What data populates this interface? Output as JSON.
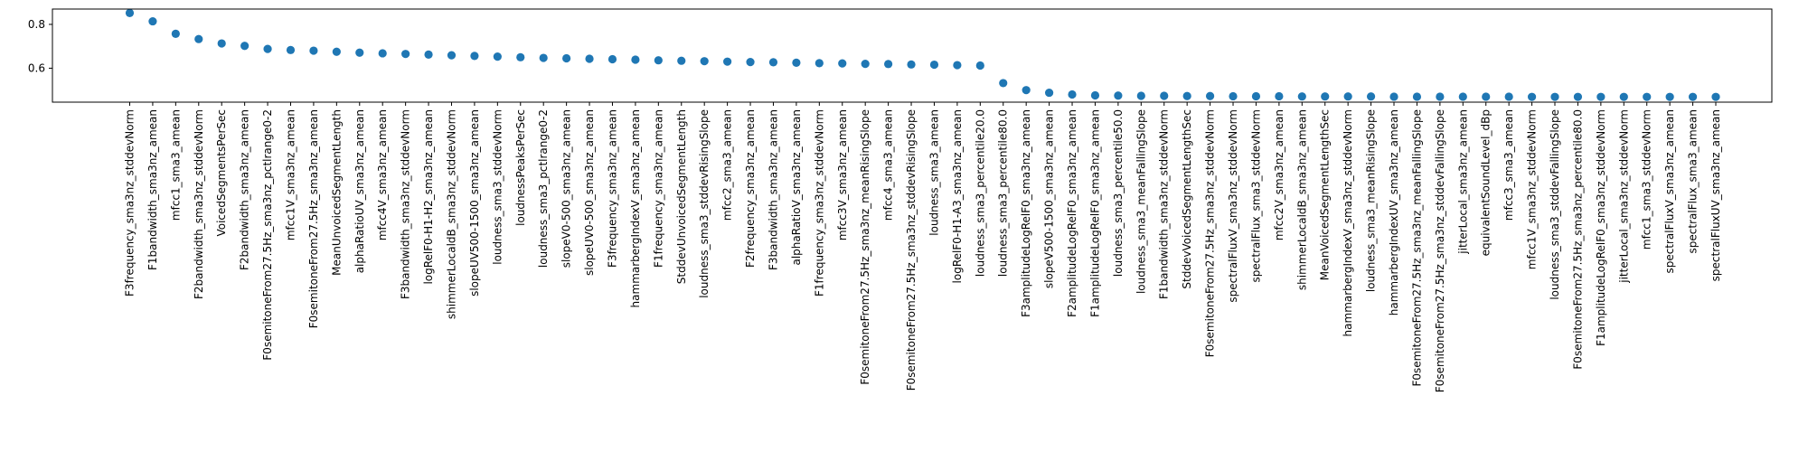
{
  "chart_data": {
    "type": "scatter",
    "title": "",
    "xlabel": "",
    "ylabel": "",
    "ylim": [
      0.445,
      0.87
    ],
    "yticks": [
      0.6,
      0.8
    ],
    "ytick_labels": [
      "0.6",
      "0.8"
    ],
    "grid": false,
    "legend": "none",
    "marker_color": "#1f77b4",
    "categories": [
      "F3frequency_sma3nz_stddevNorm",
      "F1bandwidth_sma3nz_amean",
      "mfcc1_sma3_amean",
      "F2bandwidth_sma3nz_stddevNorm",
      "VoicedSegmentsPerSec",
      "F2bandwidth_sma3nz_amean",
      "F0semitoneFrom27.5Hz_sma3nz_pctlrange0-2",
      "mfcc1V_sma3nz_amean",
      "F0semitoneFrom27.5Hz_sma3nz_amean",
      "MeanUnvoicedSegmentLength",
      "alphaRatioUV_sma3nz_amean",
      "mfcc4V_sma3nz_amean",
      "F3bandwidth_sma3nz_stddevNorm",
      "logRelF0-H1-H2_sma3nz_amean",
      "shimmerLocaldB_sma3nz_stddevNorm",
      "slopeUV500-1500_sma3nz_amean",
      "loudness_sma3_stddevNorm",
      "loudnessPeaksPerSec",
      "loudness_sma3_pctlrange0-2",
      "slopeV0-500_sma3nz_amean",
      "slopeUV0-500_sma3nz_amean",
      "F3frequency_sma3nz_amean",
      "hammarbergIndexV_sma3nz_amean",
      "F1frequency_sma3nz_amean",
      "StddevUnvoicedSegmentLength",
      "loudness_sma3_stddevRisingSlope",
      "mfcc2_sma3_amean",
      "F2frequency_sma3nz_amean",
      "F3bandwidth_sma3nz_amean",
      "alphaRatioV_sma3nz_amean",
      "F1frequency_sma3nz_stddevNorm",
      "mfcc3V_sma3nz_amean",
      "F0semitoneFrom27.5Hz_sma3nz_meanRisingSlope",
      "mfcc4_sma3_amean",
      "F0semitoneFrom27.5Hz_sma3nz_stddevRisingSlope",
      "loudness_sma3_amean",
      "logRelF0-H1-A3_sma3nz_amean",
      "loudness_sma3_percentile20.0",
      "loudness_sma3_percentile80.0",
      "F3amplitudeLogRelF0_sma3nz_amean",
      "slopeV500-1500_sma3nz_amean",
      "F2amplitudeLogRelF0_sma3nz_amean",
      "F1amplitudeLogRelF0_sma3nz_amean",
      "loudness_sma3_percentile50.0",
      "loudness_sma3_meanFallingSlope",
      "F1bandwidth_sma3nz_stddevNorm",
      "StddevVoicedSegmentLengthSec",
      "F0semitoneFrom27.5Hz_sma3nz_stddevNorm",
      "spectralFluxV_sma3nz_stddevNorm",
      "spectralFlux_sma3_stddevNorm",
      "mfcc2V_sma3nz_amean",
      "shimmerLocaldB_sma3nz_amean",
      "MeanVoicedSegmentLengthSec",
      "hammarbergIndexV_sma3nz_stddevNorm",
      "loudness_sma3_meanRisingSlope",
      "hammarbergIndexUV_sma3nz_amean",
      "F0semitoneFrom27.5Hz_sma3nz_meanFallingSlope",
      "F0semitoneFrom27.5Hz_sma3nz_stddevFallingSlope",
      "jitterLocal_sma3nz_amean",
      "equivalentSoundLevel_dBp",
      "mfcc3_sma3_amean",
      "mfcc1V_sma3nz_stddevNorm",
      "loudness_sma3_stddevFallingSlope",
      "F0semitoneFrom27.5Hz_sma3nz_percentile80.0",
      "F1amplitudeLogRelF0_sma3nz_stddevNorm",
      "jitterLocal_sma3nz_stddevNorm",
      "mfcc1_sma3_stddevNorm",
      "spectralFluxV_sma3nz_amean",
      "spectralFlux_sma3_amean",
      "spectralFluxUV_sma3nz_amean"
    ],
    "values": [
      0.852,
      0.814,
      0.757,
      0.733,
      0.713,
      0.702,
      0.688,
      0.683,
      0.68,
      0.675,
      0.671,
      0.668,
      0.665,
      0.662,
      0.659,
      0.656,
      0.653,
      0.65,
      0.647,
      0.645,
      0.643,
      0.641,
      0.639,
      0.636,
      0.634,
      0.632,
      0.63,
      0.628,
      0.627,
      0.625,
      0.623,
      0.622,
      0.62,
      0.619,
      0.617,
      0.616,
      0.614,
      0.612,
      0.532,
      0.5,
      0.488,
      0.48,
      0.476,
      0.475,
      0.474,
      0.474,
      0.473,
      0.473,
      0.472,
      0.472,
      0.472,
      0.471,
      0.471,
      0.471,
      0.471,
      0.47,
      0.47,
      0.47,
      0.47,
      0.47,
      0.47,
      0.469,
      0.469,
      0.469,
      0.469,
      0.469,
      0.469,
      0.469,
      0.469,
      0.469
    ]
  }
}
